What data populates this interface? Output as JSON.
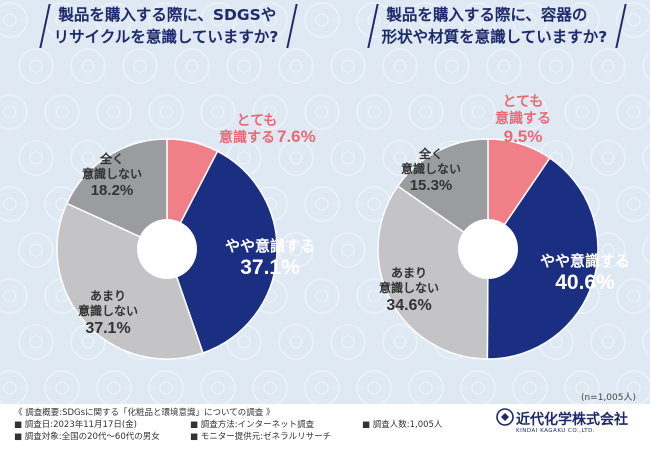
{
  "chart_data": [
    {
      "type": "pie",
      "title": "製品を購入する際に、SDGSやリサイクルを意識していますか?",
      "title_lines": [
        "製品を購入する際に、SDGSや",
        "リサイクルを意識していますか?"
      ],
      "slices": [
        {
          "name": "とても意識する",
          "label_lines": [
            "とても",
            "意識する"
          ],
          "value": 7.6,
          "value_text": "7.6%",
          "color": "#f07f87"
        },
        {
          "name": "やや意識する",
          "label_lines": [
            "やや意識する"
          ],
          "value": 37.1,
          "value_text": "37.1%",
          "color": "#1b2f82"
        },
        {
          "name": "あまり意識しない",
          "label_lines": [
            "あまり",
            "意識しない"
          ],
          "value": 37.1,
          "value_text": "37.1%",
          "color": "#c4c4c6"
        },
        {
          "name": "全く意識しない",
          "label_lines": [
            "全く",
            "意識しない"
          ],
          "value": 18.2,
          "value_text": "18.2%",
          "color": "#9b9c9f"
        }
      ]
    },
    {
      "type": "pie",
      "title": "製品を購入する際に、容器の形状や材質を意識していますか?",
      "title_lines": [
        "製品を購入する際に、容器の",
        "形状や材質を意識していますか?"
      ],
      "slices": [
        {
          "name": "とても意識する",
          "label_lines": [
            "とても",
            "意識する"
          ],
          "value": 9.5,
          "value_text": "9.5%",
          "color": "#f07f87"
        },
        {
          "name": "やや意識する",
          "label_lines": [
            "やや意識する"
          ],
          "value": 40.6,
          "value_text": "40.6%",
          "color": "#1b2f82"
        },
        {
          "name": "あまり意識しない",
          "label_lines": [
            "あまり",
            "意識しない"
          ],
          "value": 34.6,
          "value_text": "34.6%",
          "color": "#c4c4c6"
        },
        {
          "name": "全く意識しない",
          "label_lines": [
            "全く",
            "意識しない"
          ],
          "value": 15.3,
          "value_text": "15.3%",
          "color": "#9b9c9f"
        }
      ]
    }
  ],
  "sample_note": "(n=1,005人)",
  "footer": {
    "overview": "《 調査概要:SDGsに関する「化粧品と環境意識」についての調査 》",
    "date": "■ 調査日:2023年11月17日(金)",
    "method": "■ 調査方法:インターネット調査",
    "count": "■ 調査人数:1,005人",
    "target": "■ 調査対象:全国の20代〜60代の男女",
    "provider": "■ モニター提供元:ゼネラルリサーチ"
  },
  "brand": {
    "name": "近代化学株式会社",
    "sub": "KINDAI KAGAKU CO.,LTD."
  }
}
